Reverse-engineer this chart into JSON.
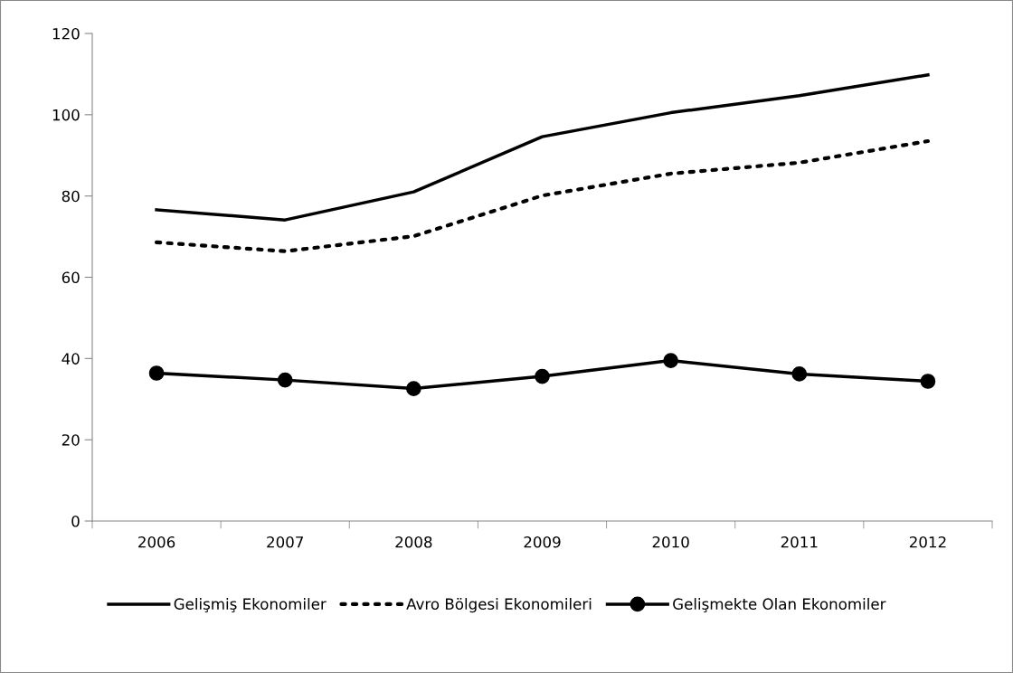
{
  "chart_data": {
    "type": "line",
    "categories": [
      "2006",
      "2007",
      "2008",
      "2009",
      "2010",
      "2011",
      "2012"
    ],
    "series": [
      {
        "name": "Gelişmiş Ekonomiler",
        "color": "#000000",
        "line_style": "solid",
        "marker": "none",
        "values": [
          76.6,
          74.1,
          81.0,
          94.6,
          100.5,
          104.7,
          109.8
        ]
      },
      {
        "name": "Avro Bölgesi Ekonomileri",
        "color": "#000000",
        "line_style": "dotted",
        "marker": "none",
        "values": [
          68.6,
          66.4,
          70.1,
          80.1,
          85.5,
          88.2,
          93.5
        ]
      },
      {
        "name": "Gelişmekte Olan Ekonomiler",
        "color": "#000000",
        "line_style": "solid",
        "marker": "circle",
        "values": [
          36.4,
          34.7,
          32.6,
          35.6,
          39.5,
          36.2,
          34.4
        ]
      }
    ],
    "ylim": [
      0,
      120
    ],
    "yticks": [
      0,
      20,
      40,
      60,
      80,
      100,
      120
    ],
    "grid": false,
    "legend": "bottom"
  }
}
